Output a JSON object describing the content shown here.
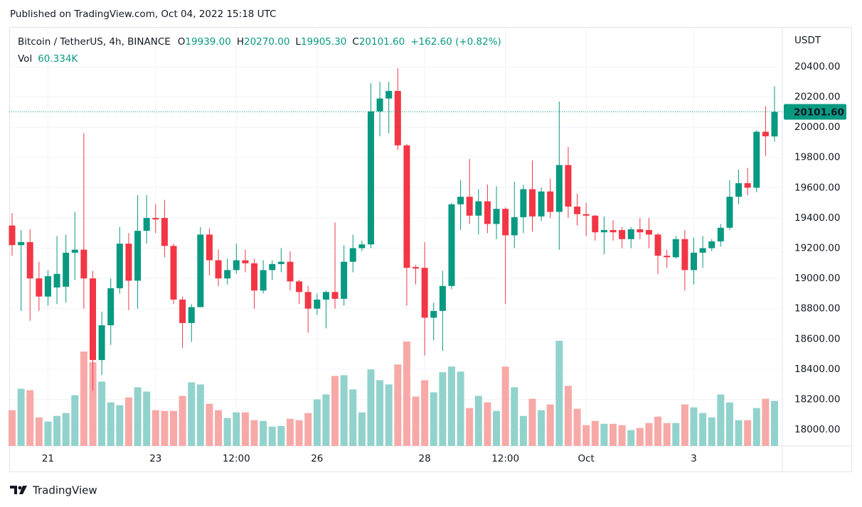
{
  "header": {
    "published": "Published on TradingView.com, Oct 04, 2022 15:18 UTC"
  },
  "footer": {
    "brand": "TradingView"
  },
  "chart_data": {
    "type": "candlestick",
    "legend": {
      "symbol": "Bitcoin / TetherUS, 4h, BINANCE",
      "fields": [
        {
          "key": "O",
          "label": "19939.00"
        },
        {
          "key": "H",
          "label": "20270.00"
        },
        {
          "key": "L",
          "label": "19905.30"
        },
        {
          "key": "C",
          "label": "20101.60"
        }
      ],
      "change": "+162.60 (+0.82%)",
      "volume_key": "Vol",
      "volume_label": "60.334K"
    },
    "y_axis_label": "USDT",
    "up_color": "#089981",
    "down_color": "#f23645",
    "up_volume_color": "#92d2cc",
    "down_volume_color": "#f7a9a7",
    "grid": true,
    "categories": [
      null,
      null,
      null,
      null,
      "21",
      null,
      null,
      null,
      null,
      null,
      null,
      null,
      null,
      null,
      null,
      null,
      "23",
      null,
      null,
      null,
      null,
      null,
      null,
      null,
      null,
      "12:00",
      null,
      null,
      null,
      null,
      null,
      null,
      null,
      null,
      "26",
      null,
      null,
      null,
      null,
      null,
      null,
      null,
      null,
      null,
      null,
      null,
      "28",
      null,
      null,
      null,
      null,
      null,
      null,
      null,
      null,
      "12:00",
      null,
      null,
      null,
      null,
      null,
      null,
      null,
      null,
      "Oct",
      null,
      null,
      null,
      null,
      null,
      null,
      null,
      null,
      null,
      null,
      null,
      "3",
      null,
      null,
      null,
      null,
      null,
      null,
      null,
      null,
      null
    ],
    "open": [
      19350,
      19220,
      19240,
      19000,
      18880,
      18940,
      18945,
      19170,
      19190,
      19000,
      18460,
      18690,
      18935,
      19230,
      18985,
      19315,
      19400,
      19400,
      19215,
      18860,
      18705,
      18810,
      19290,
      19120,
      19000,
      19055,
      19120,
      19100,
      18920,
      19055,
      19095,
      19110,
      18980,
      18910,
      18800,
      18860,
      18910,
      18865,
      19110,
      19200,
      19225,
      20105,
      20190,
      20240,
      19880,
      19075,
      19070,
      18740,
      18785,
      18950,
      19490,
      19540,
      19415,
      19510,
      19360,
      19460,
      19285,
      19405,
      19590,
      19410,
      19575,
      19440,
      19750,
      19475,
      19425,
      19415,
      19305,
      19320,
      19320,
      19260,
      19325,
      19320,
      19290,
      19150,
      19140,
      19260,
      19055,
      19170,
      19200,
      19245,
      19335,
      19540,
      19630,
      19600,
      19970,
      19939
    ],
    "high": [
      19432,
      19320,
      19325,
      19110,
      19055,
      19280,
      19290,
      19440,
      19960,
      19050,
      18780,
      19000,
      19340,
      19300,
      19550,
      19550,
      19490,
      19520,
      19230,
      18880,
      18830,
      19340,
      19330,
      19190,
      19130,
      19230,
      19190,
      19130,
      19120,
      19120,
      19200,
      19180,
      18990,
      18950,
      18900,
      18920,
      19370,
      19220,
      19290,
      19250,
      20290,
      20300,
      20300,
      20390,
      19890,
      19090,
      19240,
      18840,
      19050,
      19500,
      19650,
      19790,
      19590,
      19620,
      19610,
      19470,
      19640,
      19620,
      19780,
      19600,
      19660,
      20170,
      19870,
      19560,
      19500,
      19420,
      19410,
      19385,
      19340,
      19340,
      19400,
      19400,
      19300,
      19190,
      19280,
      19320,
      19270,
      19280,
      19260,
      19360,
      19650,
      19720,
      19730,
      19980,
      20140,
      20270
    ],
    "low": [
      19150,
      18785,
      18720,
      18785,
      18820,
      18830,
      18840,
      18990,
      18800,
      18258,
      18360,
      18560,
      18900,
      18790,
      18800,
      19230,
      19300,
      19140,
      18830,
      18540,
      18580,
      18810,
      19020,
      18950,
      18960,
      19030,
      19040,
      18800,
      18900,
      18990,
      19040,
      18920,
      18830,
      18640,
      18760,
      18670,
      18800,
      18820,
      19040,
      19180,
      19200,
      19940,
      19960,
      19850,
      18820,
      18960,
      18490,
      18590,
      18520,
      18930,
      19320,
      19360,
      19290,
      19300,
      19260,
      18830,
      19200,
      19300,
      19310,
      19380,
      19400,
      19190,
      19400,
      19350,
      19280,
      19250,
      19160,
      19250,
      19200,
      19200,
      19260,
      19200,
      19030,
      19070,
      19130,
      18920,
      18960,
      19070,
      19180,
      19210,
      19320,
      19490,
      19550,
      19570,
      19810,
      19905.3
    ],
    "close": [
      19220,
      19240,
      19000,
      18880,
      19015,
      19030,
      19170,
      19190,
      19000,
      18460,
      18690,
      18935,
      19230,
      18985,
      19315,
      19400,
      19390,
      19215,
      18860,
      18705,
      18810,
      19290,
      19120,
      19000,
      19055,
      19120,
      19100,
      18920,
      19055,
      19095,
      19110,
      18980,
      18910,
      18800,
      18860,
      18910,
      18865,
      19110,
      19200,
      19225,
      20105,
      20190,
      20240,
      19880,
      19070,
      19065,
      18740,
      18785,
      18950,
      19490,
      19540,
      19415,
      19510,
      19360,
      19460,
      19285,
      19405,
      19590,
      19410,
      19575,
      19440,
      19750,
      19475,
      19425,
      19415,
      19305,
      19320,
      19305,
      19260,
      19325,
      19305,
      19290,
      19150,
      19140,
      19260,
      19055,
      19170,
      19200,
      19245,
      19335,
      19540,
      19630,
      19600,
      19970,
      19940,
      20101.6
    ],
    "volume": [
      47.9,
      76.6,
      74.7,
      38.3,
      32.6,
      40.2,
      44.1,
      68.0,
      126.5,
      112.1,
      86.2,
      58.4,
      54.6,
      65.1,
      78.6,
      72.8,
      47.9,
      46.9,
      46.9,
      67.1,
      85.3,
      82.4,
      56.5,
      47.9,
      37.4,
      45.0,
      45.0,
      34.5,
      33.5,
      25.9,
      26.8,
      36.4,
      34.5,
      44.1,
      62.3,
      69.0,
      93.9,
      94.8,
      75.7,
      45.0,
      102.5,
      88.1,
      82.4,
      109.2,
      139.9,
      66.1,
      88.1,
      71.9,
      98.7,
      106.3,
      99.6,
      50.8,
      67.1,
      58.4,
      46.9,
      106.3,
      78.6,
      40.2,
      63.2,
      47.9,
      55.6,
      140.8,
      80.5,
      49.8,
      27.8,
      33.5,
      29.7,
      29.7,
      27.8,
      21.1,
      24.0,
      30.7,
      39.3,
      30.7,
      30.7,
      55.6,
      51.7,
      44.1,
      38.3,
      69.0,
      58.4,
      34.5,
      34.5,
      50.8,
      63.2,
      60.334
    ],
    "last_price": {
      "value": 20101.6,
      "label": "20101.60"
    },
    "ylim": [
      17892,
      20663
    ],
    "yticks": [
      {
        "value": 18000,
        "label": "18000.00"
      },
      {
        "value": 18200,
        "label": "18200.00"
      },
      {
        "value": 18400,
        "label": "18400.00"
      },
      {
        "value": 18600,
        "label": "18600.00"
      },
      {
        "value": 18800,
        "label": "18800.00"
      },
      {
        "value": 19000,
        "label": "19000.00"
      },
      {
        "value": 19200,
        "label": "19200.00"
      },
      {
        "value": 19400,
        "label": "19400.00"
      },
      {
        "value": 19600,
        "label": "19600.00"
      },
      {
        "value": 19800,
        "label": "19800.00"
      },
      {
        "value": 20000,
        "label": "20000.00"
      },
      {
        "value": 20200,
        "label": "20200.00"
      },
      {
        "value": 20400,
        "label": "20400.00"
      }
    ]
  }
}
